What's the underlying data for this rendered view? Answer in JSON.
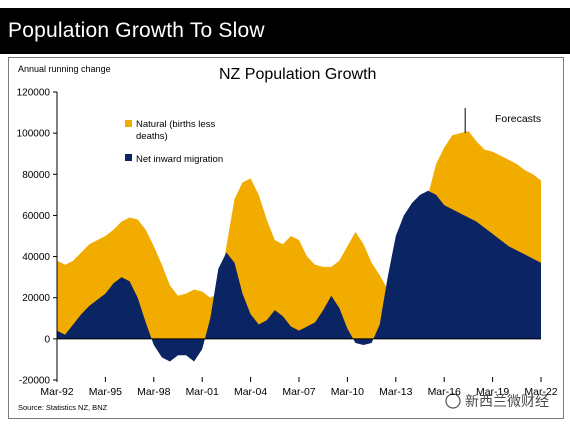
{
  "banner": {
    "title": "Population Growth To Slow"
  },
  "chart_data": {
    "type": "area",
    "title": "NZ Population Growth",
    "ylabel": "Annual running change",
    "xlabel": "",
    "ylim": [
      -20000,
      120000
    ],
    "yticks": [
      "120000",
      "100000",
      "80000",
      "60000",
      "40000",
      "20000",
      "0",
      "-20000"
    ],
    "xticks": [
      "Mar-92",
      "Mar-95",
      "Mar-98",
      "Mar-01",
      "Mar-04",
      "Mar-07",
      "Mar-10",
      "Mar-13",
      "Mar-16",
      "Mar-19",
      "Mar-22"
    ],
    "x_years": [
      1992.0,
      1992.5,
      1993.0,
      1993.5,
      1994.0,
      1994.5,
      1995.0,
      1995.5,
      1996.0,
      1996.5,
      1997.0,
      1997.5,
      1998.0,
      1998.5,
      1999.0,
      1999.5,
      2000.0,
      2000.5,
      2001.0,
      2001.5,
      2002.0,
      2002.5,
      2003.0,
      2003.5,
      2004.0,
      2004.5,
      2005.0,
      2005.5,
      2006.0,
      2006.5,
      2007.0,
      2007.5,
      2008.0,
      2008.5,
      2009.0,
      2009.5,
      2010.0,
      2010.5,
      2011.0,
      2011.5,
      2012.0,
      2012.5,
      2013.0,
      2013.5,
      2014.0,
      2014.5,
      2015.0,
      2015.5,
      2016.0,
      2016.5,
      2017.0,
      2017.5,
      2018.0,
      2018.5,
      2019.0,
      2019.5,
      2020.0,
      2020.5,
      2021.0,
      2021.5,
      2022.0
    ],
    "series": [
      {
        "name": "Natural (births less deaths)",
        "color": "#F2AC00",
        "values": [
          38000,
          36000,
          38000,
          42000,
          46000,
          48000,
          50000,
          53000,
          57000,
          59000,
          58000,
          53000,
          45000,
          36000,
          26000,
          21000,
          22000,
          24000,
          23000,
          20000,
          22000,
          45000,
          68000,
          76000,
          78000,
          70000,
          58000,
          48000,
          46000,
          50000,
          48000,
          40000,
          36000,
          35000,
          35000,
          38000,
          45000,
          52000,
          46000,
          37000,
          31000,
          24000,
          23000,
          25000,
          35000,
          52000,
          70000,
          85000,
          93000,
          99000,
          100000,
          101000,
          96000,
          92000,
          91000,
          89000,
          87000,
          85000,
          82000,
          80000,
          77000
        ]
      },
      {
        "name": "Net inward migration",
        "color": "#0B2463",
        "values": [
          4000,
          2000,
          7000,
          12000,
          16000,
          19000,
          22000,
          27000,
          30000,
          28000,
          20000,
          8000,
          -3000,
          -9000,
          -11000,
          -8000,
          -8000,
          -11000,
          -5000,
          10000,
          34000,
          42000,
          37000,
          22000,
          12000,
          7000,
          9000,
          14000,
          11000,
          6000,
          4000,
          6000,
          8000,
          14000,
          21000,
          15000,
          5000,
          -2000,
          -3000,
          -2000,
          7000,
          30000,
          50000,
          60000,
          66000,
          70000,
          72000,
          70000,
          65000,
          63000,
          61000,
          59000,
          57000,
          54000,
          51000,
          48000,
          45000,
          43000,
          41000,
          39000,
          37000
        ]
      }
    ],
    "legend_position": "top-left",
    "annotation": "Forecasts",
    "source": "Source: Statistics NZ, BNZ",
    "grid": false
  },
  "watermark": {
    "text": "新西兰微财经"
  }
}
